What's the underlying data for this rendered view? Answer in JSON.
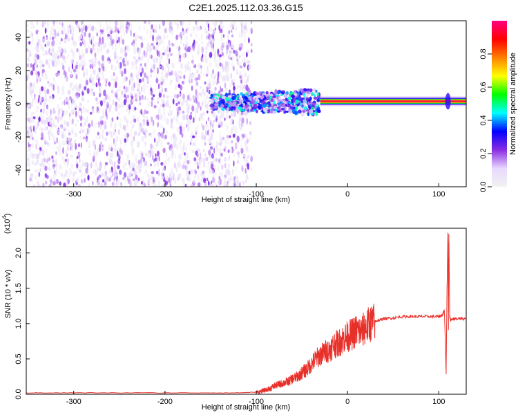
{
  "title": "C2E1.2025.112.03.36.G15",
  "chart_data": [
    {
      "type": "heatmap",
      "xlabel": "Height of straight line (km)",
      "ylabel": "Frequency (Hz)",
      "xlim": [
        -352,
        130
      ],
      "ylim": [
        -50,
        50
      ],
      "x_ticks": [
        -300,
        -200,
        -100,
        0,
        100
      ],
      "y_ticks": [
        -40,
        -20,
        0,
        20,
        40
      ],
      "features": [
        {
          "region": "scattered noise",
          "x": [
            -352,
            -105
          ],
          "y": [
            -50,
            50
          ],
          "amplitude": [
            0.0,
            0.25
          ]
        },
        {
          "region": "scattered echo cluster",
          "x": [
            -150,
            -30
          ],
          "y": [
            -10,
            10
          ],
          "amplitude": [
            0.1,
            0.5
          ]
        },
        {
          "region": "narrow line",
          "x": [
            -30,
            130
          ],
          "y": [
            0,
            3
          ],
          "amplitude": [
            0.5,
            1.0
          ]
        }
      ],
      "colorbar": {
        "label": "Normalized spectral amplitude",
        "range": [
          0.0,
          1.0
        ],
        "ticks": [
          0.0,
          0.2,
          0.4,
          0.6,
          0.8
        ],
        "colormap": [
          "#f2f2f2",
          "#e8d8ff",
          "#8a2be2",
          "#0000ff",
          "#00ffff",
          "#00ff00",
          "#ffff00",
          "#ff8000",
          "#ff0000",
          "#ff0080"
        ]
      }
    },
    {
      "type": "line",
      "xlabel": "Height of straight line (km)",
      "ylabel": "SNR (10 * v/v)",
      "multiplier_label": "(x10",
      "multiplier_exp": "4",
      "multiplier_close": ")",
      "xlim": [
        -352,
        130
      ],
      "ylim": [
        0,
        2.35
      ],
      "x_ticks": [
        -300,
        -200,
        -100,
        0,
        100
      ],
      "y_ticks": [
        "0.0",
        "0.5",
        "1.0",
        "1.5",
        "2.0"
      ],
      "color": "#e8302a",
      "series": [
        {
          "x": [
            -352,
            -300,
            -200,
            -120,
            -100,
            -95,
            -90,
            -85,
            -80,
            -75,
            -70,
            -65,
            -60,
            -55,
            -50,
            -45,
            -40,
            -35,
            -30,
            -25,
            -20,
            -15,
            -10,
            -5,
            0,
            5,
            10,
            15,
            20,
            25,
            30,
            35,
            40,
            50,
            60,
            70,
            80,
            90,
            100,
            104,
            106,
            107,
            108,
            109,
            110,
            110.5,
            111,
            112,
            113,
            115,
            120,
            130
          ],
          "y": [
            0.02,
            0.02,
            0.02,
            0.02,
            0.03,
            0.04,
            0.06,
            0.08,
            0.12,
            0.14,
            0.16,
            0.18,
            0.22,
            0.25,
            0.3,
            0.35,
            0.42,
            0.5,
            0.55,
            0.6,
            0.62,
            0.7,
            0.72,
            0.78,
            0.82,
            0.85,
            0.9,
            0.88,
            0.95,
            1.0,
            1.03,
            1.05,
            1.07,
            1.08,
            1.1,
            1.1,
            1.1,
            1.1,
            1.1,
            1.12,
            1.2,
            0.8,
            0.3,
            1.5,
            2.3,
            0.9,
            2.25,
            1.1,
            1.05,
            1.06,
            1.07,
            1.07
          ]
        }
      ]
    }
  ]
}
